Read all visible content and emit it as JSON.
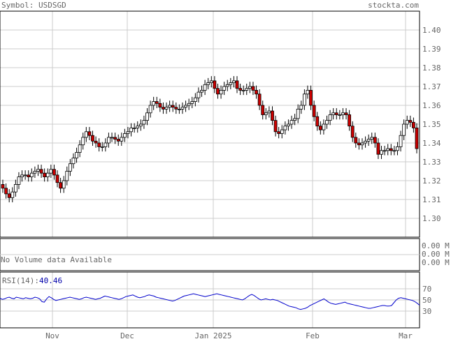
{
  "header": {
    "symbol_label": "Symbol: USDSGD",
    "site": "stockta.com"
  },
  "volume_panel": {
    "message": "No Volume data Available",
    "ticks": [
      "0.00 M",
      "0.00 M",
      "0.00 M"
    ]
  },
  "rsi_panel": {
    "label": "RSI(14):",
    "value": "40.46",
    "ticks": [
      70,
      50,
      30
    ],
    "series": [
      53,
      51,
      52,
      54,
      55,
      53,
      52,
      55,
      54,
      53,
      52,
      54,
      53,
      52,
      53,
      55,
      54,
      52,
      47,
      46,
      52,
      56,
      54,
      51,
      49,
      50,
      51,
      52,
      53,
      54,
      55,
      54,
      53,
      52,
      51,
      52,
      54,
      55,
      54,
      53,
      52,
      51,
      52,
      53,
      55,
      57,
      56,
      55,
      54,
      53,
      52,
      51,
      52,
      54,
      56,
      57,
      58,
      59,
      57,
      55,
      54,
      55,
      56,
      58,
      59,
      58,
      57,
      55,
      54,
      53,
      52,
      51,
      50,
      49,
      48,
      49,
      51,
      53,
      55,
      57,
      58,
      59,
      60,
      61,
      60,
      59,
      58,
      57,
      56,
      57,
      58,
      59,
      60,
      61,
      60,
      59,
      58,
      57,
      56,
      55,
      54,
      53,
      52,
      51,
      50,
      52,
      55,
      58,
      60,
      58,
      55,
      52,
      50,
      51,
      52,
      51,
      50,
      51,
      50,
      49,
      47,
      45,
      43,
      41,
      39,
      38,
      37,
      36,
      34,
      33,
      34,
      35,
      37,
      40,
      42,
      44,
      46,
      48,
      50,
      52,
      49,
      46,
      44,
      43,
      42,
      43,
      44,
      45,
      46,
      44,
      43,
      42,
      41,
      40,
      39,
      38,
      37,
      36,
      35,
      35,
      36,
      37,
      38,
      39,
      40,
      40,
      39,
      39,
      40,
      45,
      50,
      53,
      54,
      53,
      52,
      51,
      50,
      49,
      47,
      44,
      40.46
    ]
  },
  "chart_data": {
    "type": "candlestick",
    "title": "Symbol: USDSGD",
    "ylim": [
      1.29,
      1.41
    ],
    "yticks": [
      1.3,
      1.31,
      1.32,
      1.33,
      1.34,
      1.35,
      1.36,
      1.37,
      1.38,
      1.39,
      1.4
    ],
    "x_labels": [
      "Nov",
      "Dec",
      "Jan 2025",
      "Feb",
      "Mar"
    ],
    "grid": true,
    "closes": [
      1.316,
      1.313,
      1.311,
      1.314,
      1.318,
      1.322,
      1.323,
      1.323,
      1.322,
      1.324,
      1.325,
      1.326,
      1.324,
      1.322,
      1.324,
      1.326,
      1.323,
      1.319,
      1.316,
      1.32,
      1.325,
      1.329,
      1.332,
      1.335,
      1.339,
      1.343,
      1.346,
      1.344,
      1.341,
      1.34,
      1.338,
      1.338,
      1.34,
      1.343,
      1.343,
      1.342,
      1.341,
      1.343,
      1.345,
      1.346,
      1.348,
      1.348,
      1.349,
      1.35,
      1.352,
      1.356,
      1.36,
      1.362,
      1.361,
      1.359,
      1.358,
      1.359,
      1.36,
      1.359,
      1.358,
      1.358,
      1.359,
      1.36,
      1.361,
      1.362,
      1.364,
      1.367,
      1.368,
      1.371,
      1.372,
      1.373,
      1.369,
      1.366,
      1.368,
      1.37,
      1.371,
      1.372,
      1.373,
      1.369,
      1.368,
      1.368,
      1.369,
      1.37,
      1.368,
      1.366,
      1.36,
      1.355,
      1.356,
      1.357,
      1.352,
      1.346,
      1.345,
      1.347,
      1.349,
      1.35,
      1.352,
      1.353,
      1.358,
      1.36,
      1.366,
      1.368,
      1.36,
      1.354,
      1.349,
      1.347,
      1.35,
      1.352,
      1.355,
      1.356,
      1.355,
      1.355,
      1.356,
      1.355,
      1.349,
      1.343,
      1.34,
      1.339,
      1.34,
      1.341,
      1.342,
      1.343,
      1.34,
      1.334,
      1.336,
      1.336,
      1.337,
      1.336,
      1.336,
      1.338,
      1.344,
      1.35,
      1.352,
      1.351,
      1.348,
      1.337
    ]
  }
}
